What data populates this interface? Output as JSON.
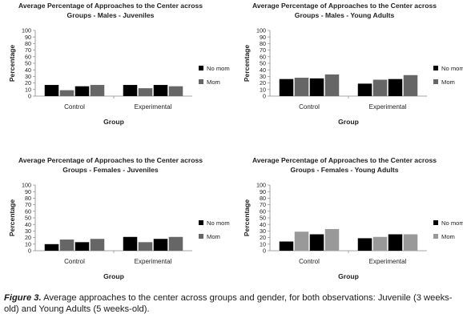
{
  "chart_data": [
    {
      "type": "bar",
      "title": [
        "Average Percentage of Approaches to the Center across",
        "Groups - Males - Juveniles"
      ],
      "xlabel": "Group",
      "ylabel": "Percentage",
      "ylim": [
        0,
        100
      ],
      "yticks": [
        "0",
        "10",
        "20",
        "30",
        "40",
        "50",
        "60",
        "70",
        "80",
        "90",
        "100"
      ],
      "categories": [
        "Control",
        "Experimental"
      ],
      "series": [
        {
          "name": "No mom",
          "color": "#000000",
          "values": [
            [
              17,
              15
            ],
            [
              17,
              17
            ]
          ]
        },
        {
          "name": "Mom",
          "color": "#666666",
          "values": [
            [
              9,
              17
            ],
            [
              12,
              15
            ]
          ]
        }
      ],
      "legend": "right",
      "grid": false
    },
    {
      "type": "bar",
      "title": [
        "Average Percentage of Approaches to the Center across",
        "Groups - Males - Young Adults"
      ],
      "xlabel": "Group",
      "ylabel": "Percentage",
      "ylim": [
        0,
        100
      ],
      "yticks": [
        "0",
        "10",
        "20",
        "30",
        "40",
        "50",
        "60",
        "70",
        "80",
        "90",
        "100"
      ],
      "categories": [
        "Control",
        "Experimental"
      ],
      "series": [
        {
          "name": "No mom",
          "color": "#000000",
          "values": [
            [
              26,
              27
            ],
            [
              19,
              26
            ]
          ]
        },
        {
          "name": "Mom",
          "color": "#666666",
          "values": [
            [
              28,
              33
            ],
            [
              25,
              32
            ]
          ]
        }
      ],
      "legend": "right",
      "grid": false
    },
    {
      "type": "bar",
      "title": [
        "Average Percentage of Approaches to the Center across",
        "Groups - Females - Juveniles"
      ],
      "xlabel": "Group",
      "ylabel": "Percentage",
      "ylim": [
        0,
        100
      ],
      "yticks": [
        "0",
        "10",
        "20",
        "30",
        "40",
        "50",
        "60",
        "70",
        "80",
        "90",
        "100"
      ],
      "categories": [
        "Control",
        "Experimental"
      ],
      "series": [
        {
          "name": "No mom",
          "color": "#000000",
          "values": [
            [
              10,
              13
            ],
            [
              21,
              18
            ]
          ]
        },
        {
          "name": "Mom",
          "color": "#666666",
          "values": [
            [
              17,
              18
            ],
            [
              13,
              21
            ]
          ]
        }
      ],
      "legend": "right",
      "grid": false
    },
    {
      "type": "bar",
      "title": [
        "Average Percentage of Approaches to the Center across",
        "Groups - Females - Young Adults"
      ],
      "xlabel": "Group",
      "ylabel": "Percentage",
      "ylim": [
        0,
        100
      ],
      "yticks": [
        "0",
        "10",
        "20",
        "30",
        "40",
        "50",
        "60",
        "70",
        "80",
        "90",
        "100"
      ],
      "categories": [
        "Control",
        "Experimental"
      ],
      "series": [
        {
          "name": "No mom",
          "color": "#000000",
          "values": [
            [
              14,
              25
            ],
            [
              19,
              25
            ]
          ]
        },
        {
          "name": "Mom",
          "color": "#999999",
          "values": [
            [
              29,
              33
            ],
            [
              21,
              25
            ]
          ]
        }
      ],
      "legend": "right",
      "grid": false
    }
  ],
  "caption": {
    "figure_label": "Figure 3.",
    "text": " Average approaches to the center across groups and gender, for both observations: Juvenile (3 weeks-old) and Young Adults (5 weeks-old)."
  }
}
